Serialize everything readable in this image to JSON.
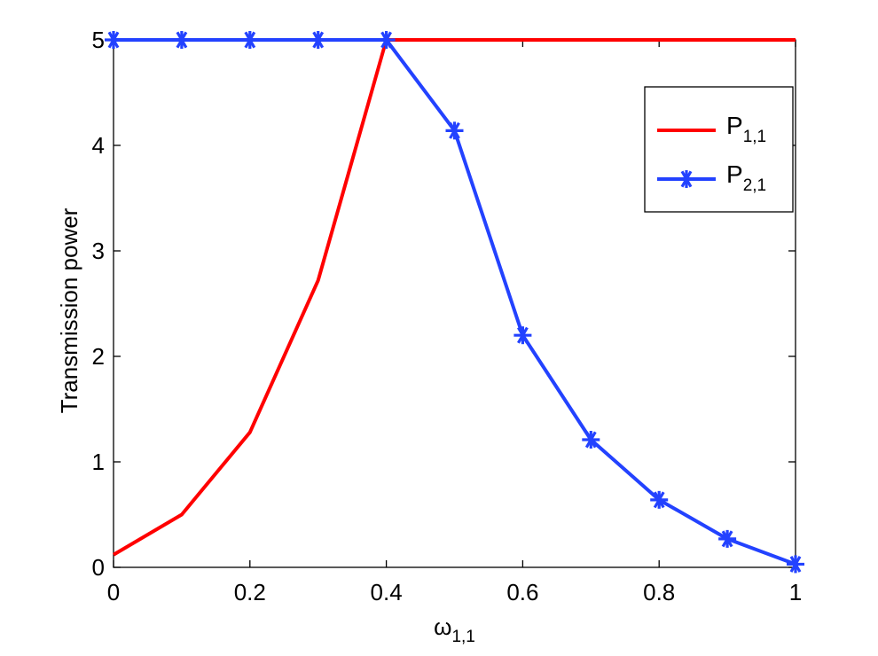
{
  "chart_data": {
    "type": "line",
    "title": "",
    "xlabel": "ω",
    "xlabel_subscript": "1,1",
    "ylabel": "Transmission power",
    "xlim": [
      0,
      1
    ],
    "ylim": [
      0,
      5
    ],
    "xticks": [
      0,
      0.2,
      0.4,
      0.6,
      0.8,
      1
    ],
    "xtick_labels": [
      "0",
      "0.2",
      "0.4",
      "0.6",
      "0.8",
      "1"
    ],
    "yticks": [
      0,
      1,
      2,
      3,
      4,
      5
    ],
    "ytick_labels": [
      "0",
      "1",
      "2",
      "3",
      "4",
      "5"
    ],
    "grid": false,
    "legend_position": "top-right",
    "x": [
      0,
      0.1,
      0.2,
      0.3,
      0.4,
      0.5,
      0.6,
      0.7,
      0.8,
      0.9,
      1.0
    ],
    "series": [
      {
        "name": "P",
        "name_subscript": "1,1",
        "color": "#ff0000",
        "marker": "none",
        "values": [
          0.12,
          0.5,
          1.28,
          2.72,
          5.0,
          5.0,
          5.0,
          5.0,
          5.0,
          5.0,
          5.0
        ]
      },
      {
        "name": "P",
        "name_subscript": "2,1",
        "color": "#2342ff",
        "marker": "asterisk",
        "values": [
          5.0,
          5.0,
          5.0,
          5.0,
          5.0,
          4.14,
          2.2,
          1.21,
          0.64,
          0.27,
          0.03
        ]
      }
    ]
  }
}
